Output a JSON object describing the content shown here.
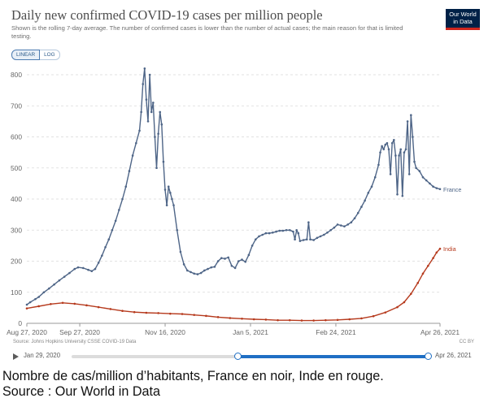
{
  "header": {
    "title": "Daily new confirmed COVID-19 cases per million people",
    "subtitle": "Shown is the rolling 7-day average. The number of confirmed cases is lower than the number of actual cases; the main reason for that is limited testing.",
    "logo_line1": "Our World",
    "logo_line2": "in Data",
    "logo_color": "#002147",
    "logo_accent": "#ce261e"
  },
  "controls": {
    "linear_label": "LINEAR",
    "log_label": "LOG",
    "active_scale": "LINEAR"
  },
  "chart_data": {
    "type": "line",
    "title": "Daily new confirmed COVID-19 cases per million people",
    "xlabel": "",
    "ylabel": "",
    "ylim": [
      0,
      800
    ],
    "yticks": [
      0,
      100,
      200,
      300,
      400,
      500,
      600,
      700,
      800
    ],
    "ytick_labels": [
      "0",
      "100",
      "200",
      "300",
      "400",
      "500",
      "600",
      "700",
      "800"
    ],
    "xlim": [
      "2020-08-27",
      "2021-04-26"
    ],
    "xticks": [
      "2020-08-27",
      "2020-09-27",
      "2020-11-16",
      "2021-01-05",
      "2021-02-24",
      "2021-04-26"
    ],
    "xtick_labels": [
      "Aug 27, 2020",
      "Sep 27, 2020",
      "Nov 16, 2020",
      "Jan 5, 2021",
      "Feb 24, 2021",
      "Apr 26, 2021"
    ],
    "grid": "horizontal dashed",
    "legend": "line-end labels",
    "series": [
      {
        "name": "France",
        "color": "#4e6587",
        "points": [
          [
            "2020-08-27",
            60
          ],
          [
            "2020-08-29",
            68
          ],
          [
            "2020-09-01",
            78
          ],
          [
            "2020-09-03",
            85
          ],
          [
            "2020-09-06",
            100
          ],
          [
            "2020-09-09",
            112
          ],
          [
            "2020-09-12",
            125
          ],
          [
            "2020-09-15",
            138
          ],
          [
            "2020-09-18",
            150
          ],
          [
            "2020-09-21",
            162
          ],
          [
            "2020-09-24",
            175
          ],
          [
            "2020-09-26",
            180
          ],
          [
            "2020-09-29",
            178
          ],
          [
            "2020-10-02",
            172
          ],
          [
            "2020-10-04",
            168
          ],
          [
            "2020-10-06",
            175
          ],
          [
            "2020-10-08",
            195
          ],
          [
            "2020-10-10",
            218
          ],
          [
            "2020-10-12",
            245
          ],
          [
            "2020-10-14",
            270
          ],
          [
            "2020-10-16",
            300
          ],
          [
            "2020-10-18",
            330
          ],
          [
            "2020-10-20",
            365
          ],
          [
            "2020-10-22",
            400
          ],
          [
            "2020-10-24",
            440
          ],
          [
            "2020-10-26",
            490
          ],
          [
            "2020-10-28",
            540
          ],
          [
            "2020-10-30",
            580
          ],
          [
            "2020-11-01",
            620
          ],
          [
            "2020-11-02",
            680
          ],
          [
            "2020-11-03",
            770
          ],
          [
            "2020-11-04",
            820
          ],
          [
            "2020-11-05",
            720
          ],
          [
            "2020-11-06",
            650
          ],
          [
            "2020-11-07",
            800
          ],
          [
            "2020-11-08",
            680
          ],
          [
            "2020-11-09",
            710
          ],
          [
            "2020-11-10",
            600
          ],
          [
            "2020-11-11",
            500
          ],
          [
            "2020-11-12",
            610
          ],
          [
            "2020-11-13",
            680
          ],
          [
            "2020-11-14",
            640
          ],
          [
            "2020-11-15",
            520
          ],
          [
            "2020-11-16",
            430
          ],
          [
            "2020-11-17",
            380
          ],
          [
            "2020-11-18",
            440
          ],
          [
            "2020-11-19",
            420
          ],
          [
            "2020-11-20",
            400
          ],
          [
            "2020-11-21",
            380
          ],
          [
            "2020-11-23",
            300
          ],
          [
            "2020-11-25",
            230
          ],
          [
            "2020-11-27",
            190
          ],
          [
            "2020-11-29",
            170
          ],
          [
            "2020-12-01",
            165
          ],
          [
            "2020-12-03",
            160
          ],
          [
            "2020-12-05",
            158
          ],
          [
            "2020-12-07",
            162
          ],
          [
            "2020-12-09",
            170
          ],
          [
            "2020-12-11",
            175
          ],
          [
            "2020-12-13",
            180
          ],
          [
            "2020-12-15",
            182
          ],
          [
            "2020-12-17",
            200
          ],
          [
            "2020-12-19",
            210
          ],
          [
            "2020-12-21",
            208
          ],
          [
            "2020-12-23",
            212
          ],
          [
            "2020-12-25",
            185
          ],
          [
            "2020-12-27",
            178
          ],
          [
            "2020-12-29",
            200
          ],
          [
            "2020-12-31",
            205
          ],
          [
            "2021-01-02",
            198
          ],
          [
            "2021-01-04",
            220
          ],
          [
            "2021-01-06",
            250
          ],
          [
            "2021-01-08",
            270
          ],
          [
            "2021-01-10",
            280
          ],
          [
            "2021-01-12",
            285
          ],
          [
            "2021-01-14",
            290
          ],
          [
            "2021-01-16",
            290
          ],
          [
            "2021-01-18",
            292
          ],
          [
            "2021-01-20",
            295
          ],
          [
            "2021-01-22",
            298
          ],
          [
            "2021-01-24",
            298
          ],
          [
            "2021-01-26",
            300
          ],
          [
            "2021-01-28",
            300
          ],
          [
            "2021-01-30",
            295
          ],
          [
            "2021-01-31",
            270
          ],
          [
            "2021-02-01",
            300
          ],
          [
            "2021-02-02",
            290
          ],
          [
            "2021-02-03",
            265
          ],
          [
            "2021-02-05",
            268
          ],
          [
            "2021-02-07",
            270
          ],
          [
            "2021-02-08",
            325
          ],
          [
            "2021-02-09",
            270
          ],
          [
            "2021-02-11",
            268
          ],
          [
            "2021-02-13",
            275
          ],
          [
            "2021-02-15",
            280
          ],
          [
            "2021-02-17",
            285
          ],
          [
            "2021-02-19",
            292
          ],
          [
            "2021-02-21",
            300
          ],
          [
            "2021-02-23",
            308
          ],
          [
            "2021-02-25",
            318
          ],
          [
            "2021-02-27",
            315
          ],
          [
            "2021-03-01",
            312
          ],
          [
            "2021-03-03",
            318
          ],
          [
            "2021-03-05",
            325
          ],
          [
            "2021-03-07",
            338
          ],
          [
            "2021-03-09",
            355
          ],
          [
            "2021-03-11",
            375
          ],
          [
            "2021-03-13",
            395
          ],
          [
            "2021-03-15",
            420
          ],
          [
            "2021-03-17",
            440
          ],
          [
            "2021-03-19",
            470
          ],
          [
            "2021-03-21",
            510
          ],
          [
            "2021-03-22",
            550
          ],
          [
            "2021-03-23",
            570
          ],
          [
            "2021-03-24",
            560
          ],
          [
            "2021-03-25",
            575
          ],
          [
            "2021-03-26",
            580
          ],
          [
            "2021-03-27",
            560
          ],
          [
            "2021-03-28",
            480
          ],
          [
            "2021-03-29",
            580
          ],
          [
            "2021-03-30",
            590
          ],
          [
            "2021-03-31",
            540
          ],
          [
            "2021-04-01",
            415
          ],
          [
            "2021-04-02",
            540
          ],
          [
            "2021-04-03",
            560
          ],
          [
            "2021-04-04",
            410
          ],
          [
            "2021-04-05",
            550
          ],
          [
            "2021-04-06",
            560
          ],
          [
            "2021-04-07",
            650
          ],
          [
            "2021-04-08",
            480
          ],
          [
            "2021-04-09",
            670
          ],
          [
            "2021-04-10",
            600
          ],
          [
            "2021-04-11",
            520
          ],
          [
            "2021-04-12",
            500
          ],
          [
            "2021-04-14",
            490
          ],
          [
            "2021-04-16",
            470
          ],
          [
            "2021-04-18",
            460
          ],
          [
            "2021-04-20",
            450
          ],
          [
            "2021-04-22",
            440
          ],
          [
            "2021-04-24",
            435
          ],
          [
            "2021-04-26",
            432
          ]
        ]
      },
      {
        "name": "India",
        "color": "#b63a1d",
        "points": [
          [
            "2020-08-27",
            48
          ],
          [
            "2020-09-03",
            55
          ],
          [
            "2020-09-10",
            62
          ],
          [
            "2020-09-17",
            66
          ],
          [
            "2020-09-24",
            63
          ],
          [
            "2020-10-01",
            58
          ],
          [
            "2020-10-08",
            52
          ],
          [
            "2020-10-15",
            46
          ],
          [
            "2020-10-22",
            40
          ],
          [
            "2020-10-29",
            36
          ],
          [
            "2020-11-05",
            34
          ],
          [
            "2020-11-12",
            33
          ],
          [
            "2020-11-19",
            31
          ],
          [
            "2020-11-26",
            30
          ],
          [
            "2020-12-03",
            27
          ],
          [
            "2020-12-10",
            24
          ],
          [
            "2020-12-17",
            20
          ],
          [
            "2020-12-24",
            17
          ],
          [
            "2020-12-31",
            15
          ],
          [
            "2021-01-07",
            13
          ],
          [
            "2021-01-14",
            12
          ],
          [
            "2021-01-21",
            10
          ],
          [
            "2021-01-28",
            10
          ],
          [
            "2021-02-04",
            9
          ],
          [
            "2021-02-11",
            9
          ],
          [
            "2021-02-18",
            10
          ],
          [
            "2021-02-25",
            11
          ],
          [
            "2021-03-04",
            13
          ],
          [
            "2021-03-11",
            16
          ],
          [
            "2021-03-18",
            23
          ],
          [
            "2021-03-25",
            35
          ],
          [
            "2021-04-01",
            52
          ],
          [
            "2021-04-05",
            68
          ],
          [
            "2021-04-09",
            95
          ],
          [
            "2021-04-13",
            130
          ],
          [
            "2021-04-16",
            160
          ],
          [
            "2021-04-19",
            185
          ],
          [
            "2021-04-22",
            210
          ],
          [
            "2021-04-24",
            228
          ],
          [
            "2021-04-26",
            240
          ]
        ]
      }
    ]
  },
  "footer": {
    "source": "Source: Johns Hopkins University CSSE COVID-19 Data",
    "license": "CC BY"
  },
  "timeline": {
    "start_label": "Jan 29, 2020",
    "end_label": "Apr 26, 2021"
  },
  "caption": {
    "line1": "Nombre de cas/million d’habitants, France en noir, Inde en rouge.",
    "line2": "Source : Our World in Data"
  }
}
